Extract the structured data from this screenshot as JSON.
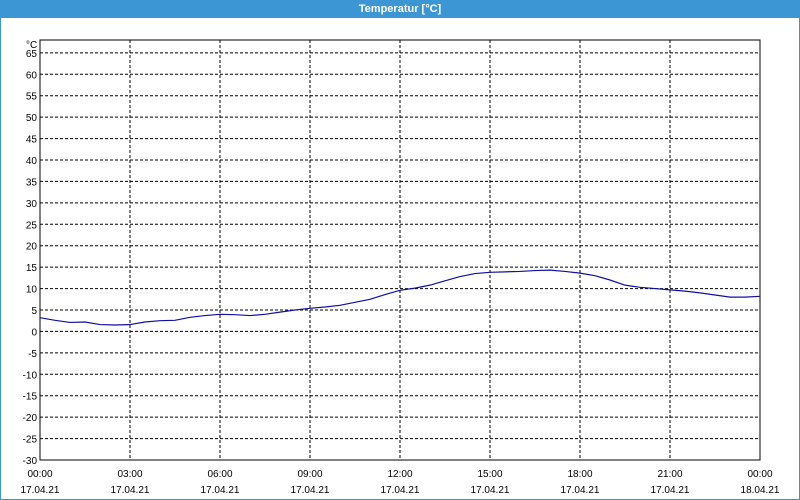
{
  "window": {
    "title": "Temperatur [°C]"
  },
  "chart_data": {
    "type": "line",
    "title": "Temperatur [°C]",
    "ylabel": "°C",
    "xlabel": "",
    "ylim": [
      -30,
      68
    ],
    "yticks": [
      65,
      60,
      55,
      50,
      45,
      40,
      35,
      30,
      25,
      20,
      15,
      10,
      5,
      0,
      -5,
      -10,
      -15,
      -20,
      -25,
      -30
    ],
    "xlim_hours": [
      0,
      24
    ],
    "xticks": [
      {
        "time": "00:00",
        "date": "17.04.21"
      },
      {
        "time": "03:00",
        "date": "17.04.21"
      },
      {
        "time": "06:00",
        "date": "17.04.21"
      },
      {
        "time": "09:00",
        "date": "17.04.21"
      },
      {
        "time": "12:00",
        "date": "17.04.21"
      },
      {
        "time": "15:00",
        "date": "17.04.21"
      },
      {
        "time": "18:00",
        "date": "17.04.21"
      },
      {
        "time": "21:00",
        "date": "17.04.21"
      },
      {
        "time": "00:00",
        "date": "18.04.21"
      }
    ],
    "grid": true,
    "series": [
      {
        "color": "#1010a0",
        "x": [
          "00:00",
          "00:30",
          "01:00",
          "01:30",
          "02:00",
          "02:30",
          "03:00",
          "03:30",
          "04:00",
          "04:30",
          "05:00",
          "05:30",
          "06:00",
          "06:30",
          "07:00",
          "07:30",
          "08:00",
          "08:30",
          "09:00",
          "09:30",
          "10:00",
          "10:30",
          "11:00",
          "11:30",
          "12:00",
          "12:30",
          "13:00",
          "13:30",
          "14:00",
          "14:30",
          "15:00",
          "15:30",
          "16:00",
          "16:30",
          "17:00",
          "17:30",
          "18:00",
          "18:30",
          "19:00",
          "19:30",
          "20:00",
          "20:30",
          "21:00",
          "21:30",
          "22:00",
          "22:30",
          "23:00",
          "23:30",
          "00:00"
        ],
        "values": [
          3.2,
          2.6,
          2.1,
          2.2,
          1.6,
          1.5,
          1.6,
          2.2,
          2.5,
          2.6,
          3.3,
          3.7,
          4.0,
          3.9,
          3.7,
          4.0,
          4.5,
          5.0,
          5.4,
          5.7,
          6.1,
          6.8,
          7.5,
          8.6,
          9.6,
          10.1,
          10.8,
          11.8,
          12.8,
          13.5,
          13.8,
          13.9,
          14.0,
          14.2,
          14.3,
          14.0,
          13.6,
          13.0,
          12.0,
          10.8,
          10.3,
          10.0,
          9.7,
          9.4,
          9.0,
          8.5,
          8.0,
          8.0,
          8.2
        ]
      }
    ]
  }
}
